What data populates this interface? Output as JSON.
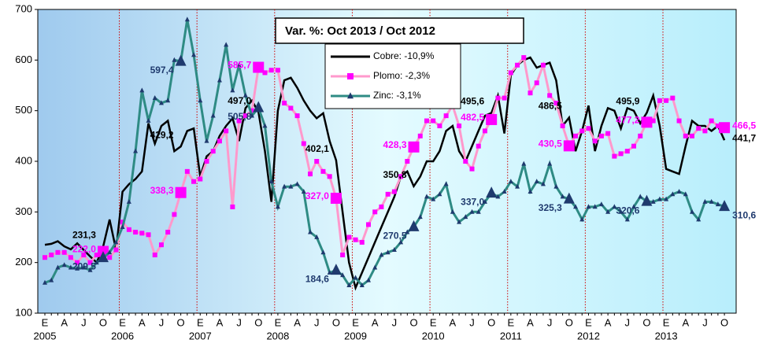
{
  "chart_data": {
    "type": "line",
    "title": "Var. %: Oct 2013 / Oct 2012",
    "categories": [
      "E",
      null,
      null,
      "A",
      null,
      null,
      "J",
      null,
      null,
      "O",
      null,
      null,
      "E",
      null,
      null,
      "A",
      null,
      null,
      "J",
      null,
      null,
      "O",
      null,
      null,
      "E",
      null,
      null,
      "A",
      null,
      null,
      "J",
      null,
      null,
      "O",
      null,
      null,
      "E",
      null,
      null,
      "A",
      null,
      null,
      "J",
      null,
      null,
      "O",
      null,
      null,
      "E",
      null,
      null,
      "A",
      null,
      null,
      "J",
      null,
      null,
      "O",
      null,
      null,
      "E",
      null,
      null,
      "A",
      null,
      null,
      "J",
      null,
      null,
      "O",
      null,
      null,
      "E",
      null,
      null,
      "A",
      null,
      null,
      "J",
      null,
      null,
      "O",
      null,
      null,
      "E",
      null,
      null,
      "A",
      null,
      null,
      "J",
      null,
      null,
      "O",
      null,
      null,
      "E",
      null,
      null,
      "A",
      null,
      null,
      "J",
      null,
      null,
      "O"
    ],
    "years": [
      "2005",
      "2006",
      "2007",
      "2008",
      "2009",
      "2010",
      "2011",
      "2012",
      "2013"
    ],
    "ylim": [
      100,
      700
    ],
    "yticks": [
      100,
      200,
      300,
      400,
      500,
      600,
      700
    ],
    "year_separators": true,
    "series": [
      {
        "name": "Cobre: -10,9%",
        "color": "#000000",
        "marker": "none",
        "marker_color": "#000000",
        "label_color": "#000000",
        "values": [
          235,
          237,
          242,
          232,
          226,
          238,
          225,
          212,
          200,
          231.3,
          285,
          225,
          340,
          355,
          365,
          380,
          475,
          435,
          470,
          480,
          420,
          429.2,
          460,
          465,
          370,
          410,
          420,
          450,
          470,
          485,
          440,
          505,
          520,
          497.0,
          420,
          320,
          500,
          560,
          565,
          545,
          520,
          500,
          485,
          495,
          440,
          402.1,
          300,
          200,
          150,
          180,
          210,
          240,
          270,
          300,
          330,
          370,
          380,
          350.8,
          370,
          400,
          400,
          420,
          460,
          470,
          420,
          400,
          430,
          460,
          490,
          495.6,
          530,
          455,
          570,
          590,
          600,
          605,
          585,
          590,
          595,
          560,
          470,
          486.5,
          420,
          460,
          510,
          420,
          470,
          505,
          500,
          465,
          505,
          500,
          475,
          495.9,
          530,
          470,
          385,
          380,
          375,
          430,
          480,
          470,
          470,
          460,
          470,
          441.7
        ],
        "value_labels": [
          null,
          null,
          null,
          null,
          null,
          null,
          null,
          null,
          null,
          "231,3",
          null,
          null,
          null,
          null,
          null,
          null,
          null,
          null,
          null,
          null,
          null,
          "429,2",
          null,
          null,
          null,
          null,
          null,
          null,
          null,
          null,
          null,
          null,
          null,
          "497,0",
          null,
          null,
          null,
          null,
          null,
          null,
          null,
          null,
          null,
          null,
          null,
          "402,1",
          null,
          null,
          null,
          null,
          null,
          null,
          null,
          null,
          null,
          null,
          null,
          "350,8",
          null,
          null,
          null,
          null,
          null,
          null,
          null,
          null,
          null,
          null,
          null,
          "495,6",
          null,
          null,
          null,
          null,
          null,
          null,
          null,
          null,
          null,
          null,
          null,
          "486,5",
          null,
          null,
          null,
          null,
          null,
          null,
          null,
          null,
          null,
          null,
          null,
          "495,9",
          null,
          null,
          null,
          null,
          null,
          null,
          null,
          null,
          null,
          null,
          null,
          "441,7"
        ]
      },
      {
        "name": "Plomo: -2,3%",
        "color": "#ff99cc",
        "marker": "square",
        "marker_color": "#ff00ff",
        "label_color": "#ff00ff",
        "values": [
          210,
          215,
          220,
          220,
          210,
          200,
          215,
          200,
          215,
          222.0,
          210,
          225,
          280,
          265,
          260,
          258,
          255,
          215,
          235,
          260,
          295,
          338.3,
          380,
          360,
          365,
          400,
          420,
          440,
          460,
          310,
          480,
          490,
          500,
          585.7,
          575,
          580,
          580,
          515,
          505,
          490,
          435,
          375,
          400,
          380,
          370,
          327.0,
          215,
          250,
          245,
          240,
          275,
          300,
          310,
          335,
          340,
          370,
          400,
          428.3,
          450,
          480,
          480,
          470,
          490,
          510,
          470,
          400,
          385,
          430,
          460,
          482.5,
          525,
          525,
          575,
          590,
          605,
          535,
          555,
          590,
          530,
          515,
          470,
          430.5,
          450,
          460,
          465,
          440,
          450,
          455,
          410,
          415,
          420,
          430,
          450,
          477.2,
          480,
          520,
          520,
          525,
          480,
          450,
          450,
          465,
          460,
          480,
          470,
          466.5
        ],
        "value_labels": [
          null,
          null,
          null,
          null,
          null,
          null,
          null,
          null,
          null,
          "222,0",
          null,
          null,
          null,
          null,
          null,
          null,
          null,
          null,
          null,
          null,
          null,
          "338,3",
          null,
          null,
          null,
          null,
          null,
          null,
          null,
          null,
          null,
          null,
          null,
          "585,7",
          null,
          null,
          null,
          null,
          null,
          null,
          null,
          null,
          null,
          null,
          null,
          "327,0",
          null,
          null,
          null,
          null,
          null,
          null,
          null,
          null,
          null,
          null,
          null,
          "428,3",
          null,
          null,
          null,
          null,
          null,
          null,
          null,
          null,
          null,
          null,
          null,
          "482,5",
          null,
          null,
          null,
          null,
          null,
          null,
          null,
          null,
          null,
          null,
          null,
          "430,5",
          null,
          null,
          null,
          null,
          null,
          null,
          null,
          null,
          null,
          null,
          null,
          "477,2",
          null,
          null,
          null,
          null,
          null,
          null,
          null,
          null,
          null,
          null,
          null,
          "466,5"
        ]
      },
      {
        "name": "Zinc: -3,1%",
        "color": "#2e8b84",
        "marker": "triangle",
        "marker_color": "#1f3a6e",
        "label_color": "#1f3a6e",
        "values": [
          160,
          165,
          190,
          195,
          190,
          188,
          190,
          185,
          200,
          209.5,
          220,
          240,
          270,
          320,
          420,
          540,
          480,
          525,
          515,
          520,
          600,
          597.4,
          680,
          610,
          520,
          440,
          490,
          560,
          630,
          540,
          590,
          530,
          490,
          505.8,
          470,
          360,
          310,
          350,
          350,
          355,
          340,
          260,
          250,
          220,
          180,
          184.6,
          175,
          155,
          170,
          155,
          165,
          190,
          215,
          220,
          225,
          240,
          260,
          270.5,
          290,
          330,
          325,
          335,
          355,
          300,
          280,
          290,
          300,
          300,
          320,
          337.0,
          330,
          340,
          360,
          350,
          395,
          340,
          360,
          355,
          395,
          350,
          330,
          325.3,
          310,
          285,
          310,
          310,
          315,
          300,
          310,
          300,
          285,
          310,
          330,
          320.6,
          320,
          325,
          325,
          335,
          340,
          335,
          300,
          285,
          320,
          320,
          315,
          310.6
        ],
        "value_labels": [
          null,
          null,
          null,
          null,
          null,
          null,
          null,
          null,
          null,
          "209,5",
          null,
          null,
          null,
          null,
          null,
          null,
          null,
          null,
          null,
          null,
          null,
          "597,4",
          null,
          null,
          null,
          null,
          null,
          null,
          null,
          null,
          null,
          null,
          null,
          "505,8",
          null,
          null,
          null,
          null,
          null,
          null,
          null,
          null,
          null,
          null,
          null,
          "184,6",
          null,
          null,
          null,
          null,
          null,
          null,
          null,
          null,
          null,
          null,
          null,
          "270,5",
          null,
          null,
          null,
          null,
          null,
          null,
          null,
          null,
          null,
          null,
          null,
          "337,0",
          null,
          null,
          null,
          null,
          null,
          null,
          null,
          null,
          null,
          null,
          null,
          "325,3",
          null,
          null,
          null,
          null,
          null,
          null,
          null,
          null,
          null,
          null,
          null,
          "320,6",
          null,
          null,
          null,
          null,
          null,
          null,
          null,
          null,
          null,
          null,
          null,
          "310,6"
        ]
      }
    ]
  }
}
